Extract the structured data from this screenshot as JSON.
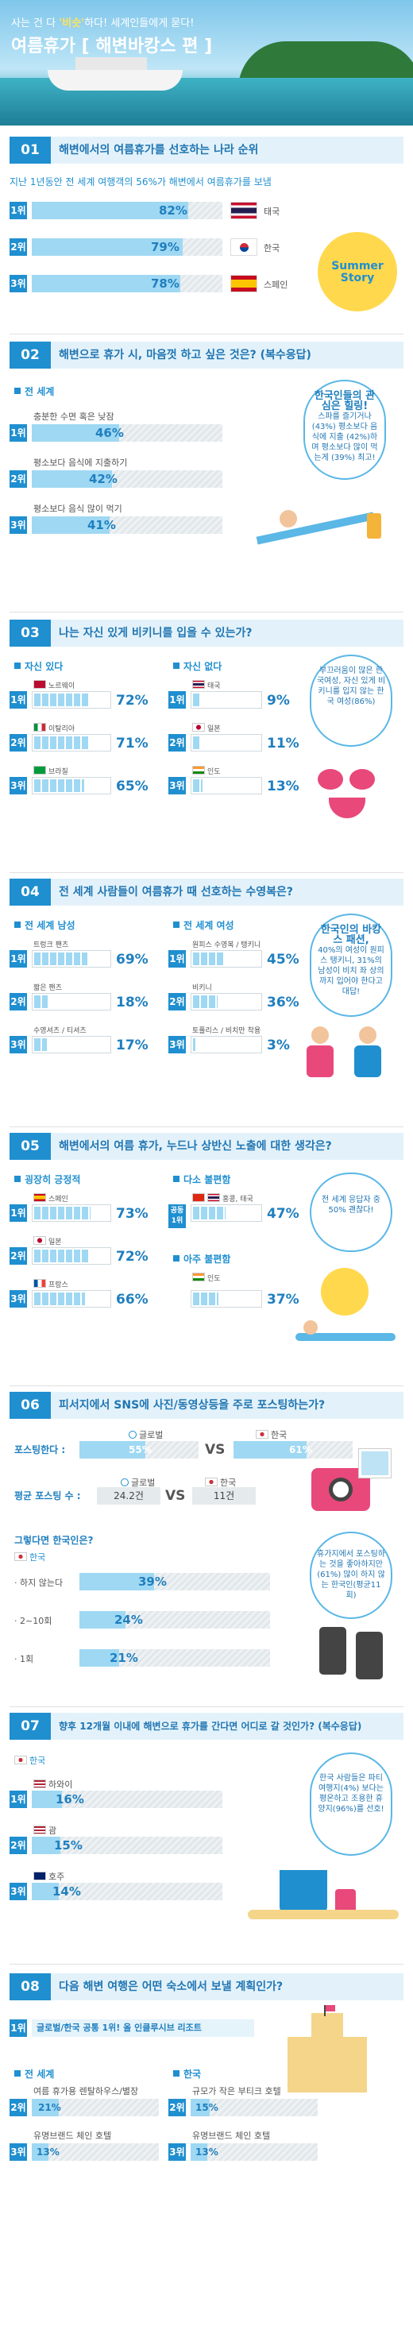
{
  "hero": {
    "tag_a": "사는 건 다 ",
    "tag_b": "'비슷'",
    "tag_c": "하다! 세계인들에게 묻다!",
    "title": "여름휴가 [ 해변바캉스 편 ]"
  },
  "s1": {
    "num": "01",
    "q": "해변에서의 여름휴가를 선호하는 나라 순위",
    "sub": "지난 1년동안 전 세계 여행객의 56%가 해변에서 여름휴가를 보냄",
    "rows": [
      {
        "rank": "1위",
        "pct": "82%",
        "country": "태국",
        "value": 82
      },
      {
        "rank": "2위",
        "pct": "79%",
        "country": "한국",
        "value": 79
      },
      {
        "rank": "3위",
        "pct": "78%",
        "country": "스페인",
        "value": 78
      }
    ],
    "badge": "Summer Story"
  },
  "s2": {
    "num": "02",
    "q": "해변으로 휴가 시, 마음껏 하고 싶은 것은? (복수응답)",
    "group": "전 세계",
    "rows": [
      {
        "rank": "1위",
        "label": "충분한 수면 혹은 낮잠",
        "pct": "46%",
        "value": 46
      },
      {
        "rank": "2위",
        "label": "평소보다 음식에 지출하기",
        "pct": "42%",
        "value": 42
      },
      {
        "rank": "3위",
        "label": "평소보다 음식 많이 먹기",
        "pct": "41%",
        "value": 41
      }
    ],
    "bubble_t": "한국인들의 관심은 힐링!",
    "bubble_b": "스파를 즐기거나(43%) 평소보다 음식에 지출 (42%)하며 평소보다 많이 먹는게 (39%) 최고!"
  },
  "s3": {
    "num": "03",
    "q": "나는 자신 있게 비키니를 입을 수 있는가?",
    "g1": "자신 있다",
    "g2": "자신 없다",
    "left": [
      {
        "rank": "1위",
        "country": "노르웨이",
        "pct": "72%",
        "value": 72
      },
      {
        "rank": "2위",
        "country": "이탈리아",
        "pct": "71%",
        "value": 71
      },
      {
        "rank": "3위",
        "country": "브라질",
        "pct": "65%",
        "value": 65
      }
    ],
    "right": [
      {
        "rank": "1위",
        "country": "태국",
        "pct": "9%",
        "value": 9
      },
      {
        "rank": "2위",
        "country": "일본",
        "pct": "11%",
        "value": 11
      },
      {
        "rank": "3위",
        "country": "인도",
        "pct": "13%",
        "value": 13
      }
    ],
    "bubble_t": "",
    "bubble_b": "부끄러움이 많은 한국여성, 자신 있게 비키니를 입지 않는 한국 여성(86%)"
  },
  "s4": {
    "num": "04",
    "q": "전 세계 사람들이 여름휴가 때 선호하는 수영복은?",
    "g1": "전 세계 남성",
    "g2": "전 세계 여성",
    "left": [
      {
        "rank": "1위",
        "label": "트렁크 팬츠",
        "pct": "69%",
        "value": 69
      },
      {
        "rank": "2위",
        "label": "짧은 팬츠",
        "pct": "18%",
        "value": 18
      },
      {
        "rank": "3위",
        "label": "수영셔츠 / 티셔츠",
        "pct": "17%",
        "value": 17
      }
    ],
    "right": [
      {
        "rank": "1위",
        "label": "원피스 수영복 / 탱키니",
        "pct": "45%",
        "value": 45
      },
      {
        "rank": "2위",
        "label": "비키니",
        "pct": "36%",
        "value": 36
      },
      {
        "rank": "3위",
        "label": "토플리스 / 비치만 착용",
        "pct": "3%",
        "value": 3
      }
    ],
    "bubble_t": "한국인의 바캉스 패션,",
    "bubble_b": "40%의 여성이 원피스 탱키니, 31%의 남성이 비치 좌 상의까지 입어야 한다고 대답!"
  },
  "s5": {
    "num": "05",
    "q": "해변에서의 여름 휴가, 누드나 상반신 노출에 대한 생각은?",
    "g1": "굉장히 긍정적",
    "g2": "다소 불편함",
    "g3": "아주 불편함",
    "left": [
      {
        "rank": "1위",
        "country": "스페인",
        "pct": "73%",
        "value": 73
      },
      {
        "rank": "2위",
        "country": "일본",
        "pct": "72%",
        "value": 72
      },
      {
        "rank": "3위",
        "country": "프랑스",
        "pct": "66%",
        "value": 66
      }
    ],
    "right_top": {
      "rank": "공동 1위",
      "country": "홍콩, 태국",
      "pct": "47%",
      "value": 47
    },
    "right_bottom": {
      "country": "인도",
      "pct": "37%",
      "value": 37
    },
    "bubble_t": "",
    "bubble_b": "전 세계 응답자 중 50% 괜찮다!"
  },
  "s6": {
    "num": "06",
    "q": "피서지에서 SNS에 사진/동영상등을 주로 포스팅하는가?",
    "r1_label": "포스팅한다 :",
    "global": "글로벌",
    "korea": "한국",
    "global_pct": "55%",
    "korea_pct": "61%",
    "vs": "VS",
    "r2_label": "평균 포스팅 수 :",
    "global_cnt": "24.2건",
    "korea_cnt": "11건",
    "then": "그렇다면 한국인은?",
    "group": "한국",
    "rows": [
      {
        "label": "· 하지 않는다",
        "pct": "39%",
        "value": 39
      },
      {
        "label": "· 2~10회",
        "pct": "24%",
        "value": 24
      },
      {
        "label": "· 1회",
        "pct": "21%",
        "value": 21
      }
    ],
    "bubble_t": "",
    "bubble_b": "휴가지에서 포스팅하는 것을 좋아하지만(61%) 많이 하지 않는 한국인(평균11회)"
  },
  "s7": {
    "num": "07",
    "q": "향후 12개월 이내에 해변으로 휴가를 간다면 어디로 갈 것인가? (복수응답)",
    "group": "한국",
    "rows": [
      {
        "rank": "1위",
        "country": "하와이",
        "pct": "16%",
        "value": 16
      },
      {
        "rank": "2위",
        "country": "괌",
        "pct": "15%",
        "value": 15
      },
      {
        "rank": "3위",
        "country": "호주",
        "pct": "14%",
        "value": 14
      }
    ],
    "bubble_t": "",
    "bubble_b": "한국 사람들은 파티여행지(4%) 보다는 평온하고 조용한 휴양지(96%)를 선호!"
  },
  "s8": {
    "num": "08",
    "q": "다음 해변 여행은 어떤 숙소에서 보낼 계획인가?",
    "top": {
      "rank": "1위",
      "label": "글로벌/한국 공통 1위! 올 인클루시브 리조트"
    },
    "g1": "전 세계",
    "g2": "한국",
    "left": [
      {
        "rank": "2위",
        "label": "여름 휴가용 렌탈하우스/별장",
        "pct": "21%",
        "value": 21
      },
      {
        "rank": "3위",
        "label": "유명브랜드 체인 호텔",
        "pct": "13%",
        "value": 13
      }
    ],
    "right": [
      {
        "rank": "2위",
        "label": "규모가 작은 부티크 호텔",
        "pct": "15%",
        "value": 15
      },
      {
        "rank": "3위",
        "label": "유명브랜드 체인 호텔",
        "pct": "13%",
        "value": 13
      }
    ]
  }
}
